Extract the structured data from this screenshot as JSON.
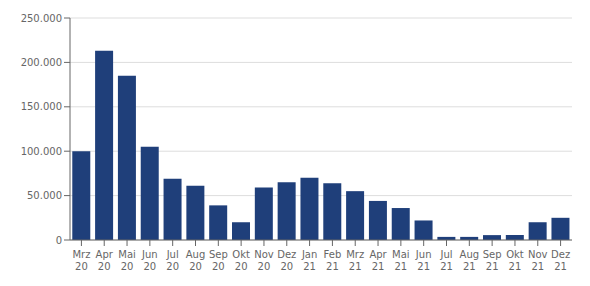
{
  "chart_data": {
    "type": "bar",
    "categories": [
      "Mrz\n20",
      "Apr\n20",
      "Mai\n20",
      "Jun\n20",
      "Jul\n20",
      "Aug\n20",
      "Sep\n20",
      "Okt\n20",
      "Nov\n20",
      "Dez\n20",
      "Jan\n21",
      "Feb\n21",
      "Mrz\n21",
      "Apr\n21",
      "Mai\n21",
      "Jun\n21",
      "Jul\n21",
      "Aug\n21",
      "Sep\n21",
      "Okt\n21",
      "Nov\n21",
      "Dez\n21"
    ],
    "values": [
      100000,
      213000,
      185000,
      105000,
      69000,
      61000,
      39000,
      20000,
      59000,
      65000,
      70000,
      64000,
      55000,
      44000,
      36000,
      22000,
      3500,
      3500,
      5500,
      5500,
      20000,
      25000
    ],
    "color": "#1F3F7A",
    "ylim": [
      0,
      250000
    ],
    "yticks": [
      0,
      {
        "value": 50000,
        "label": "50.000"
      },
      {
        "value": 100000,
        "label": "100.000"
      },
      {
        "value": 150000,
        "label": "150.000"
      },
      {
        "value": 200000,
        "label": "200.000"
      },
      {
        "value": 250000,
        "label": "250.000"
      }
    ],
    "grid": true
  }
}
